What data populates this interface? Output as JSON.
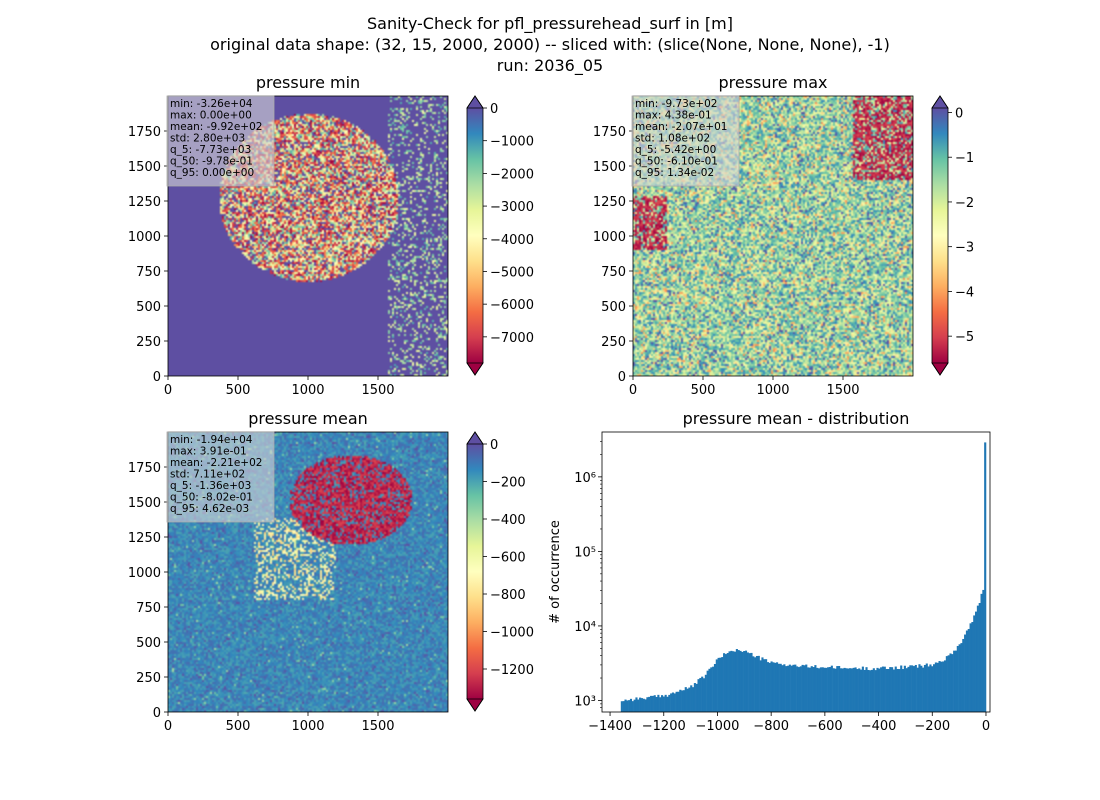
{
  "figure": {
    "title_line1": "Sanity-Check for pfl_pressurehead_surf in [m]",
    "title_line2": "original data shape: (32, 15, 2000, 2000) -- sliced with: (slice(None, None, None), -1)",
    "title_line3": "run: 2036_05"
  },
  "colors": {
    "spectral": [
      "#9e0142",
      "#d53e4f",
      "#f46d43",
      "#fdae61",
      "#fee08b",
      "#ffffbf",
      "#e6f598",
      "#abdda4",
      "#66c2a5",
      "#3288bd",
      "#5e4fa2"
    ],
    "histogram_bar": "#1f77b4"
  },
  "chart_data": [
    {
      "type": "heatmap",
      "title": "pressure min",
      "xlabel": "",
      "ylabel": "",
      "x_ticks": [
        0,
        500,
        1000,
        1500
      ],
      "y_ticks": [
        0,
        250,
        500,
        750,
        1000,
        1250,
        1500,
        1750
      ],
      "xlim": [
        0,
        2000
      ],
      "ylim": [
        0,
        2000
      ],
      "colorbar": {
        "range": [
          -7800,
          0
        ],
        "ticks": [
          0,
          -1000,
          -2000,
          -3000,
          -4000,
          -5000,
          -6000,
          -7000
        ],
        "extend": "both"
      },
      "stats": [
        "min: -3.26e+04",
        "max: 0.00e+00",
        "mean: -9.92e+02",
        "std: 2.80e+03",
        "q_5: -7.73e+03",
        "q_50: -9.78e-01",
        "q_95: 0.00e+00"
      ]
    },
    {
      "type": "heatmap",
      "title": "pressure max",
      "xlabel": "",
      "ylabel": "",
      "x_ticks": [
        0,
        500,
        1000,
        1500
      ],
      "y_ticks": [
        0,
        250,
        500,
        750,
        1000,
        1250,
        1500,
        1750
      ],
      "xlim": [
        0,
        2000
      ],
      "ylim": [
        0,
        2000
      ],
      "colorbar": {
        "range": [
          -5.6,
          0.1
        ],
        "ticks": [
          0,
          -1,
          -2,
          -3,
          -4,
          -5
        ],
        "extend": "both"
      },
      "stats": [
        "min: -9.73e+02",
        "max: 4.38e-01",
        "mean: -2.07e+01",
        "std: 1.08e+02",
        "q_5: -5.42e+00",
        "q_50: -6.10e-01",
        "q_95: 1.34e-02"
      ]
    },
    {
      "type": "heatmap",
      "title": "pressure mean",
      "xlabel": "",
      "ylabel": "",
      "x_ticks": [
        0,
        500,
        1000,
        1500
      ],
      "y_ticks": [
        0,
        250,
        500,
        750,
        1000,
        1250,
        1500,
        1750
      ],
      "xlim": [
        0,
        2000
      ],
      "ylim": [
        0,
        2000
      ],
      "colorbar": {
        "range": [
          -1360,
          0
        ],
        "ticks": [
          0,
          -200,
          -400,
          -600,
          -800,
          -1000,
          -1200
        ],
        "extend": "both"
      },
      "stats": [
        "min: -1.94e+04",
        "max: 3.91e-01",
        "mean: -2.21e+02",
        "std: 7.11e+02",
        "q_5: -1.36e+03",
        "q_50: -8.02e-01",
        "q_95: 4.62e-03"
      ]
    },
    {
      "type": "bar",
      "title": "pressure mean - distribution",
      "xlabel": "",
      "ylabel": "# of occurrence",
      "yscale": "log",
      "x_ticks": [
        -1400,
        -1200,
        -1000,
        -800,
        -600,
        -400,
        -200,
        0
      ],
      "y_ticks": [
        1000,
        10000,
        100000,
        1000000
      ],
      "y_tick_labels": [
        "10³",
        "10⁴",
        "10⁵",
        "10⁶"
      ],
      "xlim": [
        -1430,
        15
      ],
      "ylim": [
        700,
        4000000
      ],
      "bins": {
        "start": -1360,
        "end": 0,
        "count": 200
      },
      "profile_points": [
        [
          -1360,
          1000
        ],
        [
          -1200,
          1150
        ],
        [
          -1100,
          1500
        ],
        [
          -1050,
          2100
        ],
        [
          -1000,
          3500
        ],
        [
          -950,
          4800
        ],
        [
          -900,
          4600
        ],
        [
          -850,
          3800
        ],
        [
          -800,
          3200
        ],
        [
          -700,
          2900
        ],
        [
          -600,
          2800
        ],
        [
          -500,
          2700
        ],
        [
          -400,
          2700
        ],
        [
          -300,
          2800
        ],
        [
          -200,
          3000
        ],
        [
          -150,
          3600
        ],
        [
          -100,
          5500
        ],
        [
          -60,
          10000
        ],
        [
          -30,
          18000
        ],
        [
          -12,
          30000
        ],
        [
          -6,
          28000
        ],
        [
          -2,
          2900000
        ],
        [
          0,
          2900000
        ]
      ]
    }
  ]
}
